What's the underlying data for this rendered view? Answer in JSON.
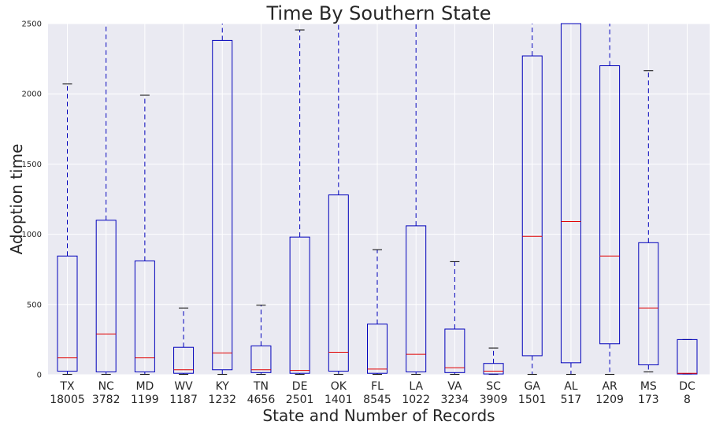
{
  "chart_data": {
    "type": "box",
    "title": "Time By Southern State",
    "xlabel": "State and Number of Records",
    "ylabel": "Adoption time",
    "ylim": [
      0,
      2500
    ],
    "yticks": [
      0,
      500,
      1000,
      1500,
      2000,
      2500
    ],
    "grid": true,
    "colors": {
      "plot_bg": "#eaeaf2",
      "grid": "#ffffff",
      "box": "#0000bb",
      "median": "#e00000",
      "whisker": "#0000bb",
      "cap": "#000000"
    },
    "categories": [
      {
        "state": "TX",
        "count": "18005",
        "q1": 25,
        "median": 120,
        "q3": 845,
        "whisker_low": 0,
        "whisker_high": 2070
      },
      {
        "state": "NC",
        "count": "3782",
        "q1": 20,
        "median": 290,
        "q3": 1100,
        "whisker_low": 0,
        "whisker_high": 2700
      },
      {
        "state": "MD",
        "count": "1199",
        "q1": 20,
        "median": 120,
        "q3": 810,
        "whisker_low": 0,
        "whisker_high": 1990
      },
      {
        "state": "WV",
        "count": "1187",
        "q1": 10,
        "median": 35,
        "q3": 195,
        "whisker_low": 0,
        "whisker_high": 475
      },
      {
        "state": "KY",
        "count": "1232",
        "q1": 35,
        "median": 155,
        "q3": 2380,
        "whisker_low": 0,
        "whisker_high": 2700
      },
      {
        "state": "TN",
        "count": "4656",
        "q1": 15,
        "median": 35,
        "q3": 205,
        "whisker_low": 0,
        "whisker_high": 495
      },
      {
        "state": "DE",
        "count": "2501",
        "q1": 10,
        "median": 30,
        "q3": 980,
        "whisker_low": 0,
        "whisker_high": 2455
      },
      {
        "state": "OK",
        "count": "1401",
        "q1": 25,
        "median": 160,
        "q3": 1280,
        "whisker_low": 0,
        "whisker_high": 2700
      },
      {
        "state": "FL",
        "count": "8545",
        "q1": 10,
        "median": 40,
        "q3": 360,
        "whisker_low": 0,
        "whisker_high": 890
      },
      {
        "state": "LA",
        "count": "1022",
        "q1": 20,
        "median": 145,
        "q3": 1060,
        "whisker_low": 0,
        "whisker_high": 2700
      },
      {
        "state": "VA",
        "count": "3234",
        "q1": 15,
        "median": 50,
        "q3": 325,
        "whisker_low": 0,
        "whisker_high": 805
      },
      {
        "state": "SC",
        "count": "3909",
        "q1": 5,
        "median": 25,
        "q3": 80,
        "whisker_low": 0,
        "whisker_high": 190
      },
      {
        "state": "GA",
        "count": "1501",
        "q1": 135,
        "median": 985,
        "q3": 2270,
        "whisker_low": 0,
        "whisker_high": 2700
      },
      {
        "state": "AL",
        "count": "517",
        "q1": 85,
        "median": 1090,
        "q3": 2700,
        "whisker_low": 0,
        "whisker_high": 2700
      },
      {
        "state": "AR",
        "count": "1209",
        "q1": 220,
        "median": 845,
        "q3": 2200,
        "whisker_low": 0,
        "whisker_high": 2700
      },
      {
        "state": "MS",
        "count": "173",
        "q1": 70,
        "median": 475,
        "q3": 940,
        "whisker_low": 20,
        "whisker_high": 2165
      },
      {
        "state": "DC",
        "count": "8",
        "q1": 5,
        "median": 10,
        "q3": 250,
        "whisker_low": 5,
        "whisker_high": 250
      }
    ]
  }
}
